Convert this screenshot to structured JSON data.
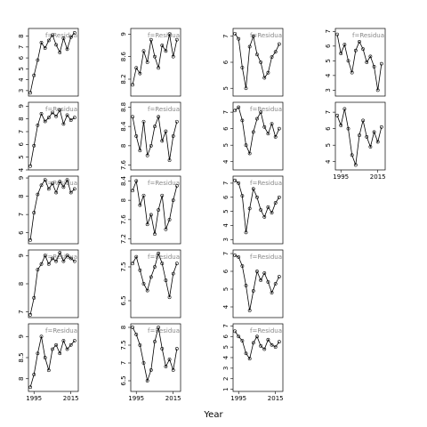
{
  "x_label": "Year",
  "chart_data": [
    {
      "type": "line",
      "annotation": "f=Residua",
      "x": [
        1993,
        1995,
        1997,
        1999,
        2001,
        2003,
        2005,
        2007,
        2009,
        2011,
        2013,
        2015,
        2017
      ],
      "values": [
        2.8,
        4.4,
        5.8,
        7.4,
        6.9,
        7.6,
        8.1,
        7.2,
        6.5,
        7.8,
        6.8,
        7.9,
        8.3
      ],
      "xlim": [
        1992,
        2019
      ],
      "ylim": [
        2.5,
        8.7
      ],
      "yticks": [
        3,
        4,
        5,
        6,
        7,
        8
      ]
    },
    {
      "type": "line",
      "annotation": "f=Residua",
      "x": [
        1993,
        1995,
        1997,
        1999,
        2001,
        2003,
        2005,
        2007,
        2009,
        2011,
        2013,
        2015,
        2017
      ],
      "values": [
        8.1,
        8.4,
        8.3,
        8.7,
        8.5,
        8.9,
        8.6,
        8.4,
        8.8,
        8.7,
        9.0,
        8.6,
        8.9
      ],
      "xlim": [
        1992,
        2019
      ],
      "ylim": [
        7.9,
        9.1
      ],
      "yticks": [
        8.2,
        8.6,
        9.0
      ]
    },
    {
      "type": "line",
      "annotation": "f=Residua",
      "x": [
        1993,
        1995,
        1997,
        1999,
        2001,
        2003,
        2005,
        2007,
        2009,
        2011,
        2013,
        2015,
        2017
      ],
      "values": [
        7.1,
        6.9,
        5.8,
        5.0,
        6.6,
        7.0,
        6.3,
        6.0,
        5.4,
        5.6,
        6.2,
        6.4,
        6.7
      ],
      "xlim": [
        1992,
        2019
      ],
      "ylim": [
        4.7,
        7.3
      ],
      "yticks": [
        5.0,
        6.0,
        7.0
      ]
    },
    {
      "type": "line",
      "annotation": "f=Residua",
      "x": [
        1993,
        1995,
        1997,
        1999,
        2001,
        2003,
        2005,
        2007,
        2009,
        2011,
        2013,
        2015,
        2017
      ],
      "values": [
        6.8,
        5.5,
        6.1,
        5.0,
        4.2,
        5.7,
        6.3,
        5.8,
        4.9,
        5.3,
        4.6,
        3.0,
        4.8
      ],
      "xlim": [
        1992,
        2019
      ],
      "ylim": [
        2.6,
        7.2
      ],
      "yticks": [
        3,
        4,
        5,
        6,
        7
      ]
    },
    {
      "type": "line",
      "annotation": "f=Residua",
      "x": [
        1993,
        1995,
        1997,
        1999,
        2001,
        2003,
        2005,
        2007,
        2009,
        2011,
        2013,
        2015,
        2017
      ],
      "values": [
        4.3,
        5.9,
        7.5,
        8.4,
        7.8,
        8.1,
        8.5,
        8.2,
        8.7,
        7.6,
        8.3,
        7.9,
        8.1
      ],
      "xlim": [
        1992,
        2019
      ],
      "ylim": [
        4,
        9.3
      ],
      "yticks": [
        4,
        5,
        6,
        7,
        8,
        9
      ]
    },
    {
      "type": "line",
      "annotation": "f=Residua",
      "x": [
        1993,
        1995,
        1997,
        1999,
        2001,
        2003,
        2005,
        2007,
        2009,
        2011,
        2013,
        2015,
        2017
      ],
      "values": [
        8.6,
        8.2,
        7.9,
        8.5,
        7.8,
        8.0,
        8.4,
        8.6,
        8.1,
        8.3,
        7.7,
        8.2,
        8.5
      ],
      "xlim": [
        1992,
        2019
      ],
      "ylim": [
        7.5,
        8.9
      ],
      "yticks": [
        7.6,
        8.0,
        8.4,
        8.8
      ]
    },
    {
      "type": "line",
      "annotation": "f=Residua",
      "x": [
        1993,
        1995,
        1997,
        1999,
        2001,
        2003,
        2005,
        2007,
        2009,
        2011,
        2013,
        2015,
        2017
      ],
      "values": [
        7.1,
        7.3,
        6.5,
        5.0,
        4.5,
        5.8,
        6.6,
        7.0,
        6.1,
        5.7,
        6.3,
        5.5,
        6.0
      ],
      "xlim": [
        1992,
        2019
      ],
      "ylim": [
        3.5,
        7.6
      ],
      "yticks": [
        4,
        5,
        6,
        7
      ]
    },
    {
      "type": "line",
      "x": [
        1993,
        1995,
        1997,
        1999,
        2001,
        2003,
        2005,
        2007,
        2009,
        2011,
        2013,
        2015,
        2017
      ],
      "values": [
        6.8,
        6.2,
        7.2,
        6.0,
        4.4,
        3.8,
        5.6,
        6.5,
        5.5,
        4.9,
        5.8,
        5.2,
        6.1
      ],
      "xlim": [
        1992,
        2019
      ],
      "ylim": [
        3.5,
        7.6
      ],
      "yticks": [
        4,
        5,
        6,
        7
      ],
      "xticks": [
        1995,
        2015
      ]
    },
    {
      "type": "line",
      "annotation": "f=Residua",
      "x": [
        1993,
        1995,
        1997,
        1999,
        2001,
        2003,
        2005,
        2007,
        2009,
        2011,
        2013,
        2015,
        2017
      ],
      "values": [
        5.6,
        7.1,
        8.1,
        8.6,
        8.9,
        8.4,
        8.7,
        8.2,
        8.8,
        8.5,
        8.9,
        8.2,
        8.4
      ],
      "xlim": [
        1992,
        2019
      ],
      "ylim": [
        5.4,
        9.1
      ],
      "yticks": [
        6,
        7,
        8,
        9
      ]
    },
    {
      "type": "line",
      "annotation": "f=Residua",
      "x": [
        1993,
        1995,
        1997,
        1999,
        2001,
        2003,
        2005,
        2007,
        2009,
        2011,
        2013,
        2015,
        2017
      ],
      "values": [
        8.2,
        8.4,
        7.9,
        8.1,
        7.5,
        7.7,
        7.3,
        7.8,
        8.1,
        7.4,
        7.6,
        8.0,
        8.3
      ],
      "xlim": [
        1992,
        2019
      ],
      "ylim": [
        7.1,
        8.5
      ],
      "yticks": [
        7.2,
        7.6,
        8.0,
        8.4
      ]
    },
    {
      "type": "line",
      "annotation": "f=Residua",
      "x": [
        1993,
        1995,
        1997,
        1999,
        2001,
        2003,
        2005,
        2007,
        2009,
        2011,
        2013,
        2015,
        2017
      ],
      "values": [
        7.2,
        7.0,
        6.1,
        3.5,
        5.2,
        6.6,
        6.0,
        5.1,
        4.6,
        5.3,
        4.9,
        5.6,
        6.0
      ],
      "xlim": [
        1992,
        2019
      ],
      "ylim": [
        2.7,
        7.5
      ],
      "yticks": [
        3,
        4,
        5,
        6,
        7
      ]
    },
    {
      "type": "line",
      "annotation": "f=Residua",
      "x": [
        1993,
        1995,
        1997,
        1999,
        2001,
        2003,
        2005,
        2007,
        2009,
        2011,
        2013,
        2015,
        2017
      ],
      "values": [
        6.9,
        7.5,
        8.5,
        8.7,
        9.0,
        8.7,
        8.9,
        8.8,
        9.1,
        8.8,
        9.0,
        8.9,
        8.8
      ],
      "xlim": [
        1992,
        2019
      ],
      "ylim": [
        6.8,
        9.2
      ],
      "yticks": [
        7.0,
        8.0,
        9.0
      ]
    },
    {
      "type": "line",
      "annotation": "f=Residua",
      "x": [
        1993,
        1995,
        1997,
        1999,
        2001,
        2003,
        2005,
        2007,
        2009,
        2011,
        2013,
        2015,
        2017
      ],
      "values": [
        7.6,
        7.8,
        7.4,
        7.0,
        6.8,
        7.2,
        7.5,
        7.9,
        7.6,
        7.1,
        6.6,
        7.3,
        7.6
      ],
      "xlim": [
        1992,
        2019
      ],
      "ylim": [
        6.0,
        8.0
      ],
      "yticks": [
        6.5,
        7.5
      ]
    },
    {
      "type": "line",
      "annotation": "f=Residua",
      "x": [
        1993,
        1995,
        1997,
        1999,
        2001,
        2003,
        2005,
        2007,
        2009,
        2011,
        2013,
        2015,
        2017
      ],
      "values": [
        6.9,
        6.8,
        6.3,
        5.2,
        3.8,
        4.9,
        6.0,
        5.5,
        5.9,
        5.4,
        4.8,
        5.3,
        5.7
      ],
      "xlim": [
        1992,
        2019
      ],
      "ylim": [
        3.4,
        7.2
      ],
      "yticks": [
        4,
        5,
        6,
        7
      ]
    },
    {
      "type": "line",
      "annotation": "f=Residua",
      "x": [
        1993,
        1995,
        1997,
        1999,
        2001,
        2003,
        2005,
        2007,
        2009,
        2011,
        2013,
        2015,
        2017
      ],
      "values": [
        7.8,
        8.1,
        8.6,
        9.0,
        8.5,
        8.2,
        8.7,
        8.8,
        8.6,
        8.9,
        8.7,
        8.8,
        8.9
      ],
      "xlim": [
        1992,
        2019
      ],
      "ylim": [
        7.7,
        9.3
      ],
      "yticks": [
        8.0,
        8.5,
        9.0
      ],
      "xticks": [
        1995,
        2015
      ]
    },
    {
      "type": "line",
      "annotation": "f=Residua",
      "x": [
        1993,
        1995,
        1997,
        1999,
        2001,
        2003,
        2005,
        2007,
        2009,
        2011,
        2013,
        2015,
        2017
      ],
      "values": [
        8.0,
        7.8,
        7.5,
        7.0,
        6.5,
        6.8,
        7.6,
        8.0,
        7.4,
        6.9,
        7.1,
        6.8,
        7.4
      ],
      "xlim": [
        1992,
        2019
      ],
      "ylim": [
        6.2,
        8.1
      ],
      "yticks": [
        6.5,
        7.0,
        7.5,
        8.0
      ],
      "xticks": [
        1995,
        2015
      ]
    },
    {
      "type": "line",
      "annotation": "f=Residua",
      "x": [
        1993,
        1995,
        1997,
        1999,
        2001,
        2003,
        2005,
        2007,
        2009,
        2011,
        2013,
        2015,
        2017
      ],
      "values": [
        6.5,
        6.0,
        5.6,
        4.4,
        3.9,
        5.4,
        6.0,
        5.1,
        4.8,
        5.7,
        5.2,
        5.0,
        5.5
      ],
      "xlim": [
        1992,
        2019
      ],
      "ylim": [
        0.8,
        7.2
      ],
      "yticks": [
        1,
        2,
        3,
        4,
        5,
        6,
        7
      ],
      "xticks": [
        1995,
        2015
      ]
    }
  ]
}
